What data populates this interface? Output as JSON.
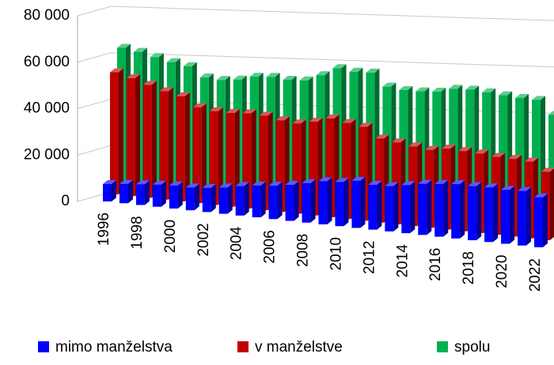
{
  "chart_data": {
    "type": "bar3d",
    "categories": [
      "1996",
      null,
      "1998",
      null,
      "2000",
      null,
      "2002",
      null,
      "2004",
      null,
      "2006",
      null,
      "2008",
      null,
      "2010",
      null,
      "2012",
      null,
      "2014",
      null,
      "2016",
      null,
      "2018",
      null,
      "2020",
      null,
      "2022"
    ],
    "series": [
      {
        "name": "mimo manželstva",
        "color": "#0000ff",
        "values": [
          7500,
          8300,
          8900,
          9500,
          9900,
          9800,
          10400,
          11300,
          12700,
          13700,
          14400,
          15500,
          17000,
          18600,
          19000,
          20300,
          19300,
          19500,
          20700,
          22000,
          22700,
          23400,
          23300,
          23500,
          23200,
          23500,
          21500
        ]
      },
      {
        "name": "v manželstve",
        "color": "#c00000",
        "values": [
          52600,
          50800,
          48700,
          46700,
          45300,
          41300,
          40400,
          40400,
          41000,
          40700,
          39500,
          38900,
          40400,
          42600,
          41400,
          40500,
          36200,
          35300,
          34300,
          33600,
          34900,
          34600,
          34300,
          33600,
          33500,
          33100,
          29500
        ]
      },
      {
        "name": "spolu",
        "color": "#00b050",
        "values": [
          60100,
          59100,
          57600,
          56200,
          55200,
          51100,
          50800,
          51700,
          53700,
          54400,
          53900,
          54400,
          57400,
          61200,
          60400,
          60800,
          55500,
          54800,
          55000,
          55600,
          57600,
          58000,
          57600,
          57100,
          56700,
          56600,
          51000
        ]
      }
    ],
    "ylim": [
      0,
      80000
    ],
    "yticks": [
      {
        "value": 0,
        "label": "0"
      },
      {
        "value": 20000,
        "label": "20 000"
      },
      {
        "value": 40000,
        "label": "40 000"
      },
      {
        "value": 60000,
        "label": "60 000"
      },
      {
        "value": 80000,
        "label": "80 000"
      }
    ],
    "grid": true,
    "legend": "bottom"
  }
}
